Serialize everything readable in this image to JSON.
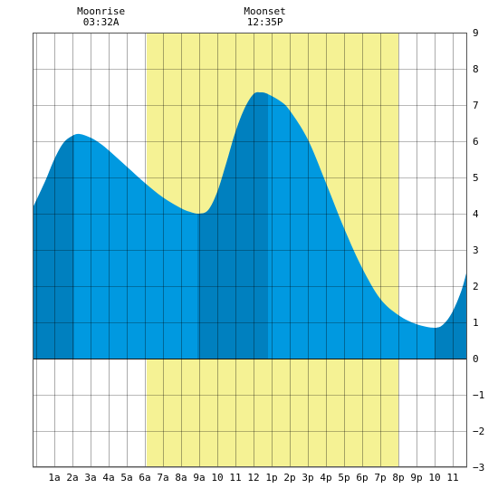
{
  "chart_data": {
    "type": "area",
    "x_unit": "hour",
    "xlim": [
      -0.2,
      23.8
    ],
    "ylim": [
      -3,
      9
    ],
    "grid": true,
    "x_ticks": [
      {
        "x": 1,
        "label": "1a"
      },
      {
        "x": 2,
        "label": "2a"
      },
      {
        "x": 3,
        "label": "3a"
      },
      {
        "x": 4,
        "label": "4a"
      },
      {
        "x": 5,
        "label": "5a"
      },
      {
        "x": 6,
        "label": "6a"
      },
      {
        "x": 7,
        "label": "7a"
      },
      {
        "x": 8,
        "label": "8a"
      },
      {
        "x": 9,
        "label": "9a"
      },
      {
        "x": 10,
        "label": "10"
      },
      {
        "x": 11,
        "label": "11"
      },
      {
        "x": 12,
        "label": "12"
      },
      {
        "x": 13,
        "label": "1p"
      },
      {
        "x": 14,
        "label": "2p"
      },
      {
        "x": 15,
        "label": "3p"
      },
      {
        "x": 16,
        "label": "4p"
      },
      {
        "x": 17,
        "label": "5p"
      },
      {
        "x": 18,
        "label": "6p"
      },
      {
        "x": 19,
        "label": "7p"
      },
      {
        "x": 20,
        "label": "8p"
      },
      {
        "x": 21,
        "label": "9p"
      },
      {
        "x": 22,
        "label": "10"
      },
      {
        "x": 23,
        "label": "11"
      }
    ],
    "y_ticks": [
      -3,
      -2,
      -1,
      0,
      1,
      2,
      3,
      4,
      5,
      6,
      7,
      8,
      9
    ],
    "daylight": [
      6.1,
      20.0
    ],
    "dark_bands": [
      [
        -0.2,
        2.1
      ],
      [
        8.9,
        12.8
      ],
      [
        22.0,
        23.8
      ]
    ],
    "tide": {
      "x": [
        -0.2,
        0.5,
        1.0,
        1.5,
        2.0,
        2.4,
        3.0,
        3.5,
        4.0,
        5.0,
        6.0,
        7.0,
        8.0,
        8.5,
        9.0,
        9.5,
        10.0,
        10.5,
        11.0,
        11.5,
        12.0,
        12.4,
        12.8,
        13.5,
        14.0,
        15.0,
        16.0,
        17.0,
        18.0,
        19.0,
        20.0,
        21.0,
        22.0,
        22.5,
        23.0,
        23.5,
        23.8
      ],
      "y": [
        4.15,
        4.9,
        5.5,
        5.95,
        6.15,
        6.2,
        6.1,
        5.95,
        5.75,
        5.3,
        4.85,
        4.45,
        4.15,
        4.05,
        4.0,
        4.1,
        4.6,
        5.4,
        6.25,
        6.9,
        7.3,
        7.35,
        7.3,
        7.1,
        6.85,
        6.05,
        4.85,
        3.6,
        2.5,
        1.65,
        1.2,
        0.95,
        0.85,
        0.95,
        1.3,
        1.9,
        2.45
      ]
    },
    "annotations": [
      {
        "label": "Moonrise",
        "time": "03:32A",
        "x": 3.53
      },
      {
        "label": "Moonset",
        "time": "12:35P",
        "x": 12.58
      }
    ],
    "colors": {
      "daylight": "#f5f294",
      "tide": "#0099e0",
      "tide_dark": "#0080bf",
      "grid": "#000000",
      "background": "#ffffff"
    }
  }
}
